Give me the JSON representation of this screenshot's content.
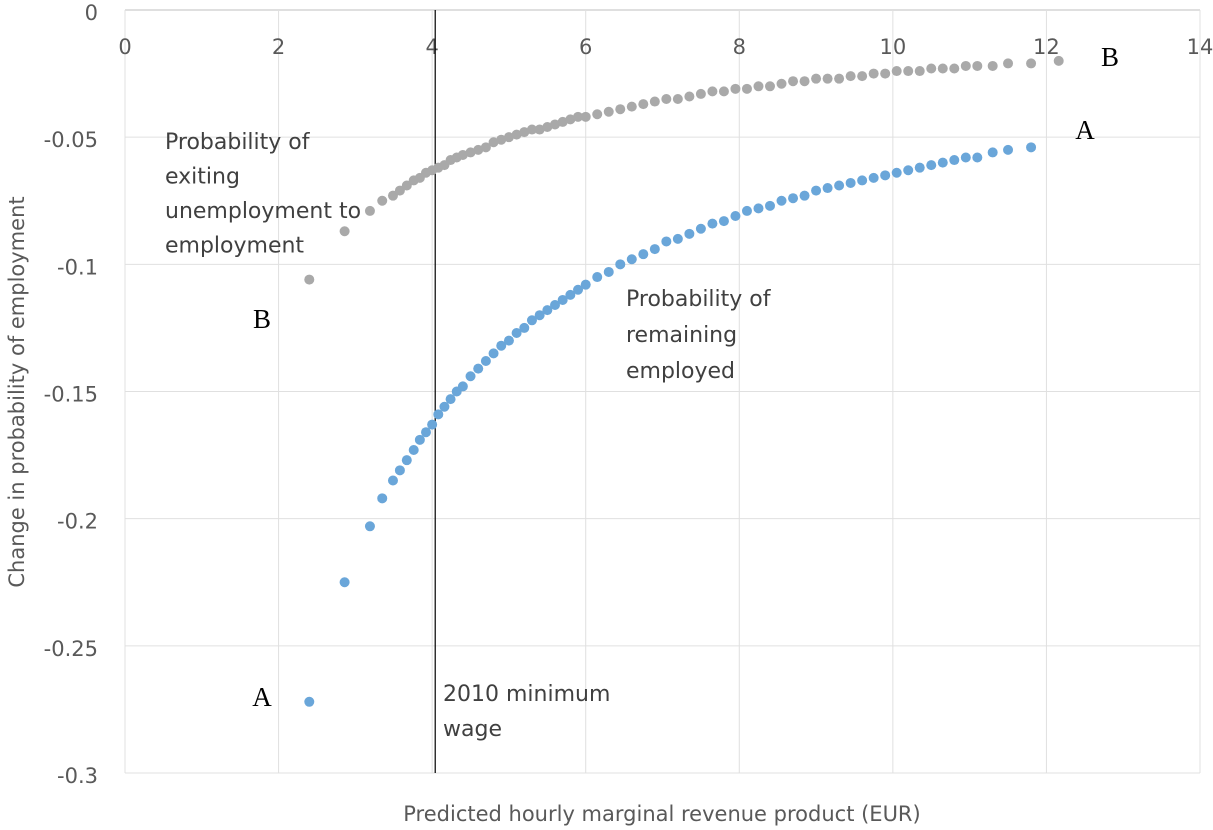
{
  "chart_data": {
    "type": "scatter",
    "x_label": "Predicted hourly marginal revenue product (EUR)",
    "y_label": "Change in probability of employment",
    "xlim": [
      0,
      14
    ],
    "ylim": [
      -0.3,
      0
    ],
    "xticks": [
      0,
      2,
      4,
      6,
      8,
      10,
      12,
      14
    ],
    "yticks": [
      0,
      -0.05,
      -0.1,
      -0.15,
      -0.2,
      -0.25,
      -0.3
    ],
    "grid": true,
    "series": [
      {
        "label": [
          "Probability of",
          "remaining",
          "employed"
        ],
        "end_labels": [
          "A",
          "A"
        ],
        "color": "#6aa6d9",
        "x": [
          2.4,
          2.86,
          3.19,
          3.35,
          3.49,
          3.58,
          3.67,
          3.76,
          3.84,
          3.92,
          4.0,
          4.08,
          4.16,
          4.24,
          4.32,
          4.4,
          4.5,
          4.6,
          4.7,
          4.8,
          4.9,
          5.0,
          5.1,
          5.2,
          5.3,
          5.4,
          5.5,
          5.6,
          5.7,
          5.8,
          5.9,
          6.0,
          6.15,
          6.3,
          6.45,
          6.6,
          6.75,
          6.9,
          7.05,
          7.2,
          7.35,
          7.5,
          7.65,
          7.8,
          7.95,
          8.1,
          8.25,
          8.4,
          8.55,
          8.7,
          8.85,
          9.0,
          9.15,
          9.3,
          9.45,
          9.6,
          9.75,
          9.9,
          10.05,
          10.2,
          10.35,
          10.5,
          10.65,
          10.8,
          10.95,
          11.1,
          11.3,
          11.5,
          11.8
        ],
        "values": [
          -0.272,
          -0.225,
          -0.203,
          -0.192,
          -0.185,
          -0.181,
          -0.177,
          -0.173,
          -0.169,
          -0.166,
          -0.163,
          -0.159,
          -0.156,
          -0.153,
          -0.15,
          -0.148,
          -0.144,
          -0.141,
          -0.138,
          -0.135,
          -0.132,
          -0.13,
          -0.127,
          -0.125,
          -0.122,
          -0.12,
          -0.118,
          -0.116,
          -0.114,
          -0.112,
          -0.11,
          -0.108,
          -0.105,
          -0.103,
          -0.1,
          -0.098,
          -0.096,
          -0.094,
          -0.091,
          -0.09,
          -0.088,
          -0.086,
          -0.084,
          -0.083,
          -0.081,
          -0.079,
          -0.078,
          -0.077,
          -0.075,
          -0.074,
          -0.073,
          -0.071,
          -0.07,
          -0.069,
          -0.068,
          -0.067,
          -0.066,
          -0.065,
          -0.064,
          -0.063,
          -0.062,
          -0.061,
          -0.06,
          -0.059,
          -0.058,
          -0.058,
          -0.056,
          -0.055,
          -0.054
        ]
      },
      {
        "label": [
          "Probability of",
          "exiting",
          "unemployment to",
          "employment"
        ],
        "end_labels": [
          "B",
          "B"
        ],
        "color": "#a9a9a9",
        "x": [
          2.4,
          2.86,
          3.19,
          3.35,
          3.49,
          3.58,
          3.67,
          3.76,
          3.84,
          3.92,
          4.0,
          4.08,
          4.16,
          4.24,
          4.32,
          4.4,
          4.5,
          4.6,
          4.7,
          4.8,
          4.9,
          5.0,
          5.1,
          5.2,
          5.3,
          5.4,
          5.5,
          5.6,
          5.7,
          5.8,
          5.9,
          6.0,
          6.15,
          6.3,
          6.45,
          6.6,
          6.75,
          6.9,
          7.05,
          7.2,
          7.35,
          7.5,
          7.65,
          7.8,
          7.95,
          8.1,
          8.25,
          8.4,
          8.55,
          8.7,
          8.85,
          9.0,
          9.15,
          9.3,
          9.45,
          9.6,
          9.75,
          9.9,
          10.05,
          10.2,
          10.35,
          10.5,
          10.65,
          10.8,
          10.95,
          11.1,
          11.3,
          11.5,
          11.8,
          12.16
        ],
        "values": [
          -0.106,
          -0.087,
          -0.079,
          -0.075,
          -0.073,
          -0.071,
          -0.069,
          -0.067,
          -0.066,
          -0.064,
          -0.063,
          -0.062,
          -0.061,
          -0.059,
          -0.058,
          -0.057,
          -0.056,
          -0.055,
          -0.054,
          -0.052,
          -0.051,
          -0.05,
          -0.049,
          -0.048,
          -0.047,
          -0.047,
          -0.046,
          -0.045,
          -0.044,
          -0.043,
          -0.042,
          -0.042,
          -0.041,
          -0.04,
          -0.039,
          -0.038,
          -0.037,
          -0.036,
          -0.035,
          -0.035,
          -0.034,
          -0.033,
          -0.032,
          -0.032,
          -0.031,
          -0.031,
          -0.03,
          -0.03,
          -0.029,
          -0.028,
          -0.028,
          -0.027,
          -0.027,
          -0.027,
          -0.026,
          -0.026,
          -0.025,
          -0.025,
          -0.024,
          -0.024,
          -0.024,
          -0.023,
          -0.023,
          -0.023,
          -0.022,
          -0.022,
          -0.022,
          -0.021,
          -0.021,
          -0.02
        ]
      }
    ],
    "reference_line": {
      "x": 4.04,
      "label": [
        "2010 minimum",
        "wage"
      ]
    }
  }
}
